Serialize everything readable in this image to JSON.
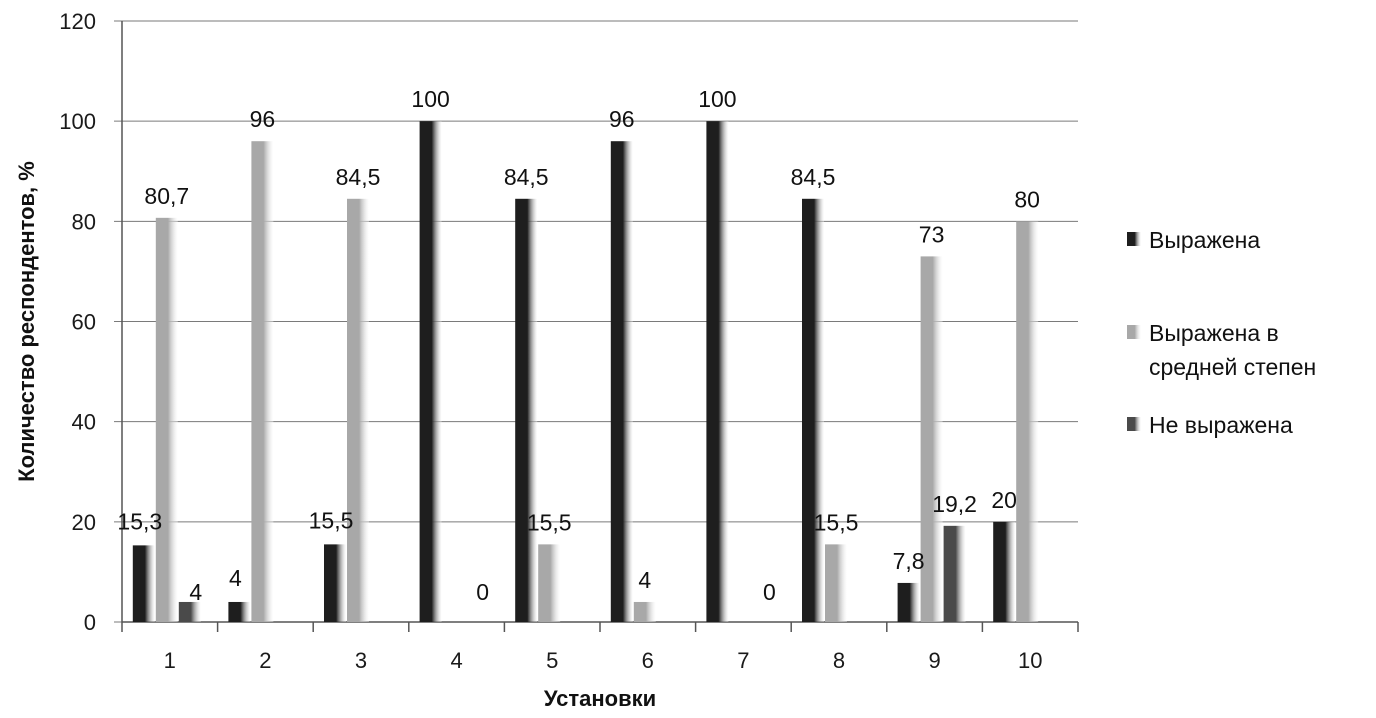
{
  "chart_data": {
    "type": "bar",
    "xlabel": "Установки",
    "ylabel": "Количество респондентов,  %",
    "ylim": [
      0,
      120
    ],
    "ytick_step": 20,
    "grid": true,
    "legend_position": "right",
    "categories": [
      "1",
      "2",
      "3",
      "4",
      "5",
      "6",
      "7",
      "8",
      "9",
      "10"
    ],
    "series": [
      {
        "name": "Выражена",
        "color": "#1e1e1e",
        "values": [
          15.3,
          4,
          15.5,
          100,
          84.5,
          96,
          100,
          84.5,
          7.8,
          20
        ],
        "labels": [
          "15,3",
          "4",
          "15,5",
          "100",
          "84,5",
          "96",
          "100",
          "84,5",
          "7,8",
          "20"
        ]
      },
      {
        "name": "Выражена в средней степен",
        "legend_lines": [
          "Выражена в",
          "средней степен"
        ],
        "color": "#a8a8a8",
        "values": [
          80.7,
          96,
          84.5,
          null,
          15.5,
          4,
          null,
          15.5,
          73,
          80
        ],
        "labels": [
          "80,7",
          "96",
          "84,5",
          "",
          "15,5",
          "4",
          "",
          "15,5",
          "73",
          "80"
        ]
      },
      {
        "name": "Не выражена",
        "color": "#4a4a4a",
        "values": [
          4,
          null,
          null,
          0,
          null,
          null,
          0,
          null,
          19.2,
          null
        ],
        "labels": [
          "4",
          "",
          "",
          "0",
          "",
          "",
          "0",
          "",
          "19,2",
          ""
        ]
      }
    ]
  }
}
